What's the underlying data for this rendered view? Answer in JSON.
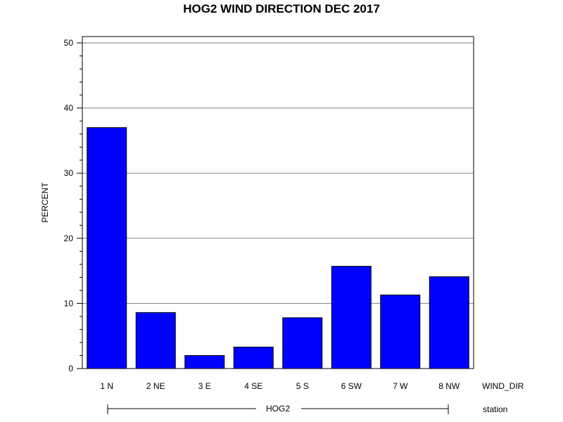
{
  "chart_data": {
    "type": "bar",
    "title": "HOG2 WIND DIRECTION DEC 2017",
    "ylabel": "PERCENT",
    "xlabel": "WIND_DIR",
    "group_axis_label": "station",
    "group_name": "HOG2",
    "categories": [
      "1 N",
      "2 NE",
      "3 E",
      "4 SE",
      "5 S",
      "6 SW",
      "7 W",
      "8 NW"
    ],
    "values": [
      37.0,
      8.6,
      2.0,
      3.3,
      7.8,
      15.7,
      11.3,
      14.1
    ],
    "ylim": [
      0,
      50
    ],
    "yticks": [
      "0",
      "10",
      "20",
      "30",
      "40",
      "50"
    ],
    "grid": true,
    "bar_color": "#0000ff"
  }
}
